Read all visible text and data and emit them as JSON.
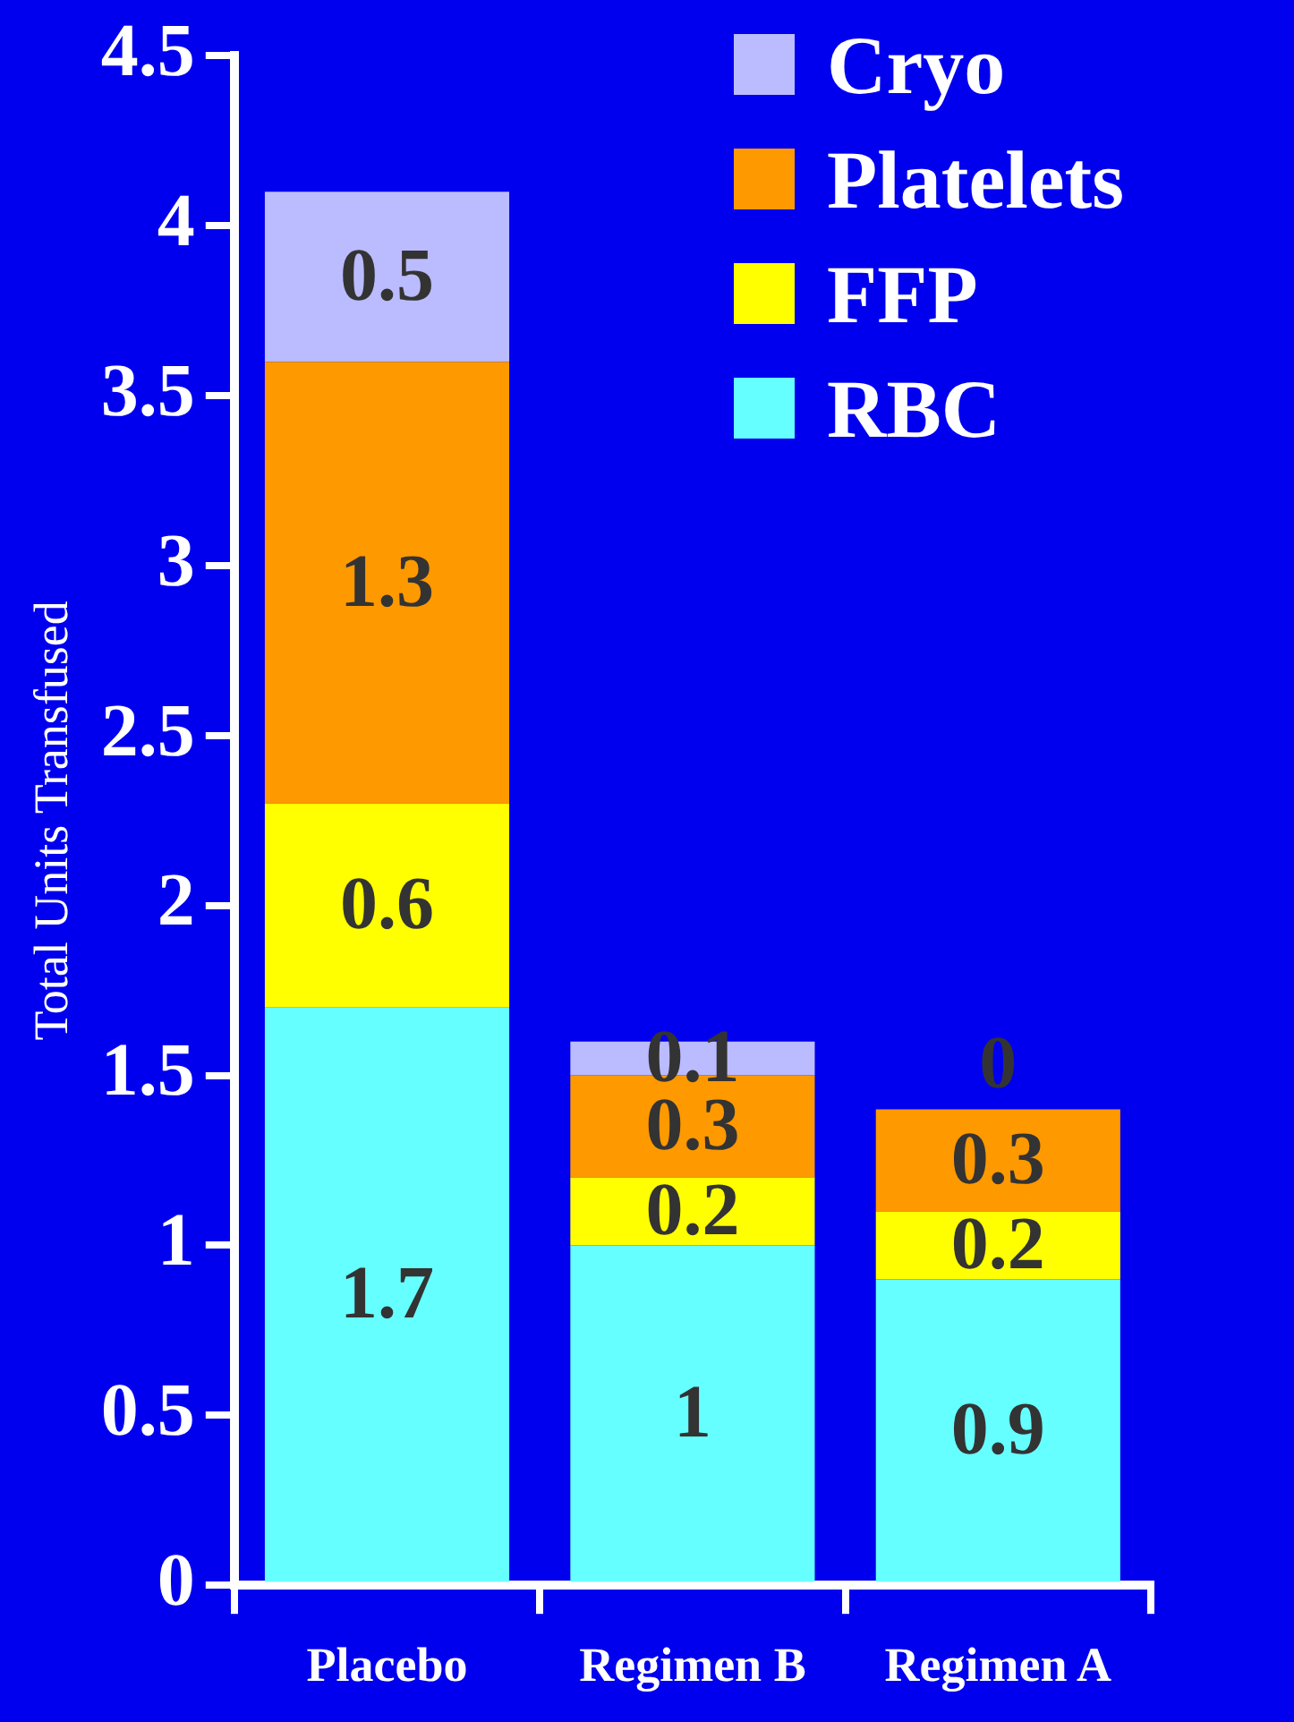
{
  "chart_data": {
    "type": "bar",
    "stacked": true,
    "ylabel": "Total Units Transfused",
    "categories": [
      "Placebo",
      "Regimen B",
      "Regimen A"
    ],
    "series": [
      {
        "name": "RBC",
        "color": "#66ffff",
        "values": [
          1.7,
          1,
          0.9
        ]
      },
      {
        "name": "FFP",
        "color": "#ffff00",
        "values": [
          0.6,
          0.2,
          0.2
        ]
      },
      {
        "name": "Platelets",
        "color": "#ff9900",
        "values": [
          1.3,
          0.3,
          0.3
        ]
      },
      {
        "name": "Cryo",
        "color": "#bbbbff",
        "values": [
          0.5,
          0.1,
          0
        ]
      }
    ],
    "ylim": [
      0,
      4.5
    ],
    "yticks": [
      0,
      0.5,
      1,
      1.5,
      2,
      2.5,
      3,
      3.5,
      4,
      4.5
    ],
    "grid": false,
    "legend": "top right",
    "data_labels": true
  }
}
